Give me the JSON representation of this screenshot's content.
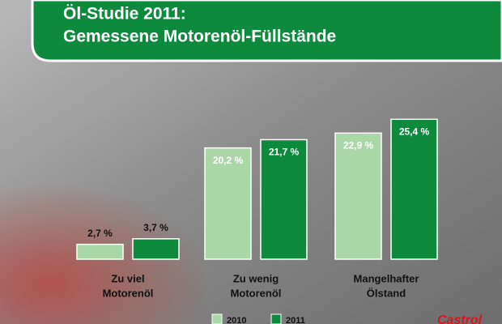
{
  "chart_data": {
    "type": "bar",
    "title": [
      "Öl-Studie 2011:",
      "Gemessene Motorenöl-Füllstände"
    ],
    "categories": [
      [
        "Zu viel",
        "Motorenöl"
      ],
      [
        "Zu wenig",
        "Motorenöl"
      ],
      [
        "Mangelhafter",
        "Ölstand"
      ]
    ],
    "series": [
      {
        "name": "2010",
        "color": "#a9d7a6",
        "values": [
          2.7,
          20.2,
          22.9
        ],
        "value_labels": [
          "2,7 %",
          "20,2 %",
          "22,9 %"
        ]
      },
      {
        "name": "2011",
        "color": "#0e8a3c",
        "values": [
          3.7,
          21.7,
          25.4
        ],
        "value_labels": [
          "3,7 %",
          "21,7 %",
          "25,4 %"
        ]
      }
    ],
    "legend": "bottom"
  },
  "brand": "Castrol"
}
